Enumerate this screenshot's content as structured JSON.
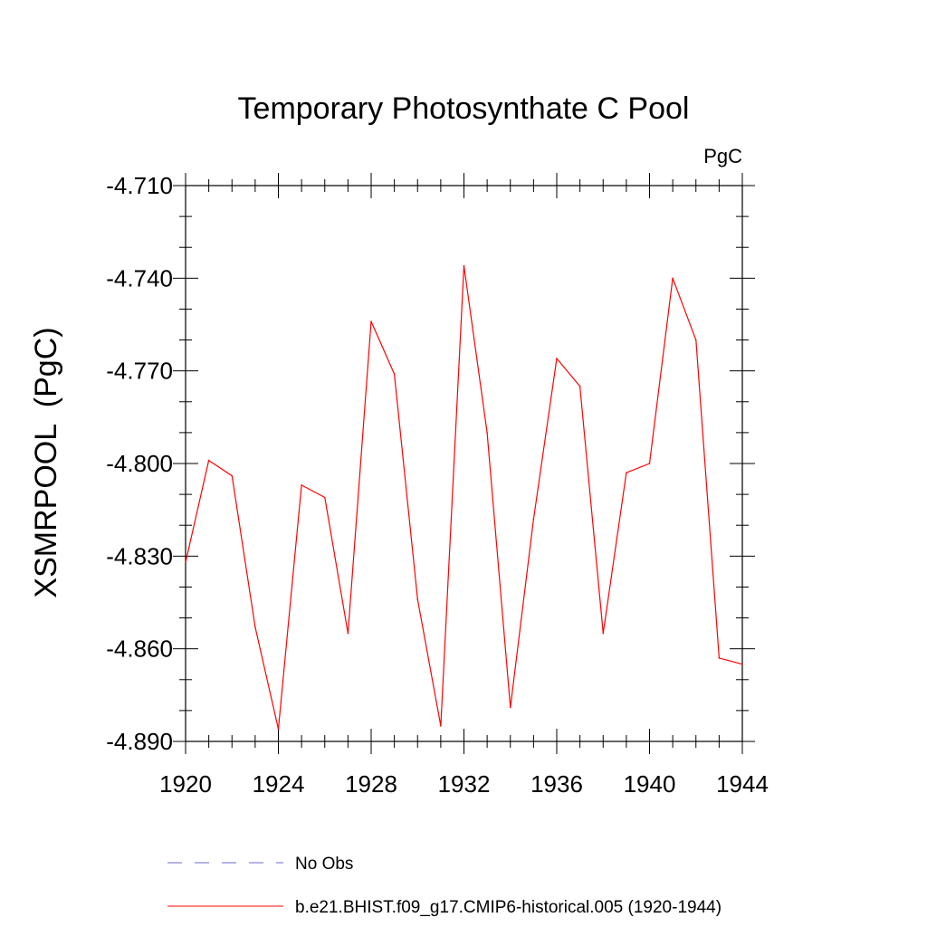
{
  "chart_data": {
    "type": "line",
    "title": "Temporary Photosynthate C Pool",
    "units_label": "PgC",
    "ylabel": "XSMRPOOL  (PgC)",
    "xlabel": "",
    "xlim": [
      1920,
      1944
    ],
    "ylim": [
      -4.89,
      -4.71
    ],
    "x_ticks": [
      1920,
      1924,
      1928,
      1932,
      1936,
      1940,
      1944
    ],
    "x_tick_labels": [
      "1920",
      "1924",
      "1928",
      "1932",
      "1936",
      "1940",
      "1944"
    ],
    "y_ticks": [
      -4.89,
      -4.86,
      -4.83,
      -4.8,
      -4.77,
      -4.74,
      -4.71
    ],
    "y_tick_labels": [
      "-4.890",
      "-4.860",
      "-4.830",
      "-4.800",
      "-4.770",
      "-4.740",
      "-4.710"
    ],
    "y_minor_step": 0.01,
    "x_minor_step": 1,
    "grid": false,
    "legend_position": "bottom",
    "series": [
      {
        "name": "b.e21.BHIST.f09_g17.CMIP6-historical.005 (1920-1944)",
        "color": "#ff0000",
        "style": "solid",
        "x": [
          1920,
          1921,
          1922,
          1923,
          1924,
          1925,
          1926,
          1927,
          1928,
          1929,
          1930,
          1931,
          1932,
          1933,
          1934,
          1935,
          1936,
          1937,
          1938,
          1939,
          1940,
          1941,
          1942,
          1943,
          1944
        ],
        "values": [
          -4.832,
          -4.799,
          -4.804,
          -4.853,
          -4.886,
          -4.807,
          -4.811,
          -4.855,
          -4.754,
          -4.771,
          -4.844,
          -4.885,
          -4.736,
          -4.79,
          -4.879,
          -4.818,
          -4.766,
          -4.775,
          -4.855,
          -4.803,
          -4.8,
          -4.74,
          -4.76,
          -4.863,
          -4.865
        ]
      }
    ],
    "legend": [
      {
        "label": "No Obs",
        "color": "#6a6acd",
        "style": "dashed"
      },
      {
        "label": "b.e21.BHIST.f09_g17.CMIP6-historical.005 (1920-1944)",
        "color": "#ff0000",
        "style": "solid"
      }
    ]
  }
}
